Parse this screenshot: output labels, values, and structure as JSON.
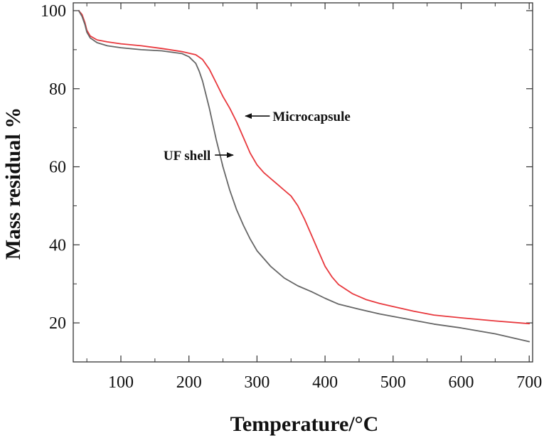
{
  "chart_data": {
    "type": "line",
    "title": "",
    "xlabel": "Temperature/°C",
    "ylabel": "Mass residual %",
    "xlim": [
      30,
      705
    ],
    "ylim": [
      10,
      102
    ],
    "xticks": [
      100,
      200,
      300,
      400,
      500,
      600,
      700
    ],
    "yticks": [
      20,
      40,
      60,
      80,
      100
    ],
    "grid": false,
    "series": [
      {
        "name": "Microcapsule",
        "color": "#e8383d",
        "x": [
          38,
          43,
          47,
          50,
          55,
          65,
          80,
          100,
          130,
          160,
          190,
          210,
          220,
          230,
          240,
          250,
          260,
          270,
          280,
          290,
          300,
          310,
          320,
          330,
          340,
          350,
          360,
          370,
          380,
          390,
          400,
          410,
          420,
          440,
          460,
          480,
          500,
          530,
          560,
          600,
          650,
          700
        ],
        "y": [
          100,
          99,
          97,
          95,
          93.5,
          92.5,
          92,
          91.5,
          91,
          90.3,
          89.5,
          88.7,
          87.5,
          85,
          81.5,
          78,
          75,
          71.5,
          67.5,
          63.5,
          60.5,
          58.5,
          57,
          55.5,
          54,
          52.5,
          50,
          46.5,
          42.5,
          38.5,
          34.5,
          31.8,
          29.8,
          27.5,
          26,
          25,
          24.2,
          23,
          22,
          21.3,
          20.5,
          19.8
        ]
      },
      {
        "name": "UF shell",
        "color": "#666666",
        "x": [
          38,
          43,
          47,
          50,
          55,
          65,
          80,
          100,
          130,
          160,
          190,
          200,
          210,
          215,
          220,
          225,
          230,
          235,
          240,
          245,
          250,
          255,
          260,
          270,
          280,
          290,
          300,
          320,
          340,
          360,
          380,
          400,
          420,
          450,
          480,
          520,
          560,
          600,
          650,
          700
        ],
        "y": [
          100,
          98.5,
          96.5,
          94.5,
          93,
          91.8,
          91,
          90.5,
          90,
          89.7,
          89,
          88.2,
          86.5,
          84.5,
          82,
          78.5,
          75,
          71,
          67,
          63.5,
          60,
          57,
          54,
          49,
          45,
          41.5,
          38.5,
          34.5,
          31.5,
          29.5,
          28,
          26.3,
          24.8,
          23.5,
          22.3,
          21,
          19.7,
          18.7,
          17.2,
          15.2
        ]
      }
    ],
    "annotations": [
      {
        "text": "Microcapsule",
        "x": 323,
        "y": 73,
        "arrow_to": [
          283,
          73
        ]
      },
      {
        "text": "UF shell",
        "x": 234,
        "y": 63,
        "arrow_to": [
          265,
          63
        ]
      }
    ]
  }
}
